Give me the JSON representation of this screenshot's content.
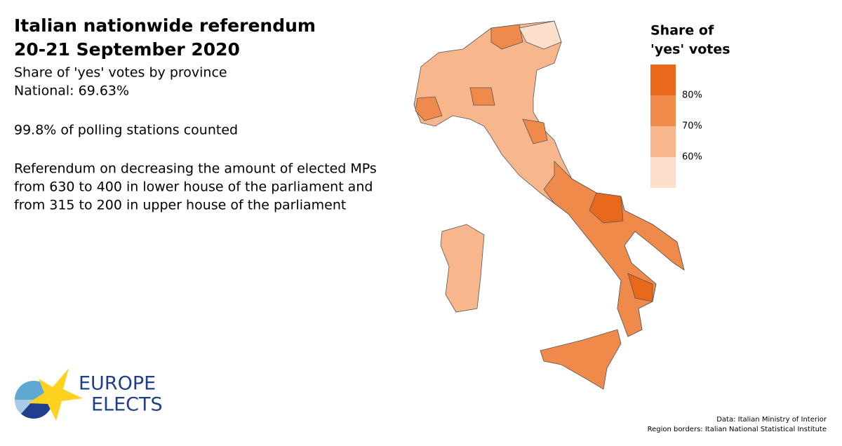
{
  "header": {
    "title_lines": [
      "Italian nationwide referendum",
      "20-21 September 2020"
    ],
    "subtitle": "Share of 'yes' votes by province",
    "national": "National: 69.63%",
    "counted": "99.8% of polling stations counted",
    "description_lines": [
      "Referendum on decreasing the amount of elected MPs",
      "from 630 to 400 in lower house of the parliament and",
      "from 315 to 200 in upper house of the parliament"
    ]
  },
  "legend": {
    "title_lines": [
      "Share of",
      "'yes' votes"
    ],
    "colors": [
      "#e8691c",
      "#f08a4b",
      "#f8b68d",
      "#fde0cc"
    ],
    "labels": [
      "80%",
      "70%",
      "60%"
    ]
  },
  "logo": {
    "lines": [
      "EUROPE",
      "ELECTS"
    ]
  },
  "sources": [
    "Data: Italian Ministry of Interior",
    "Region borders: Italian National Statistical Institute"
  ]
}
